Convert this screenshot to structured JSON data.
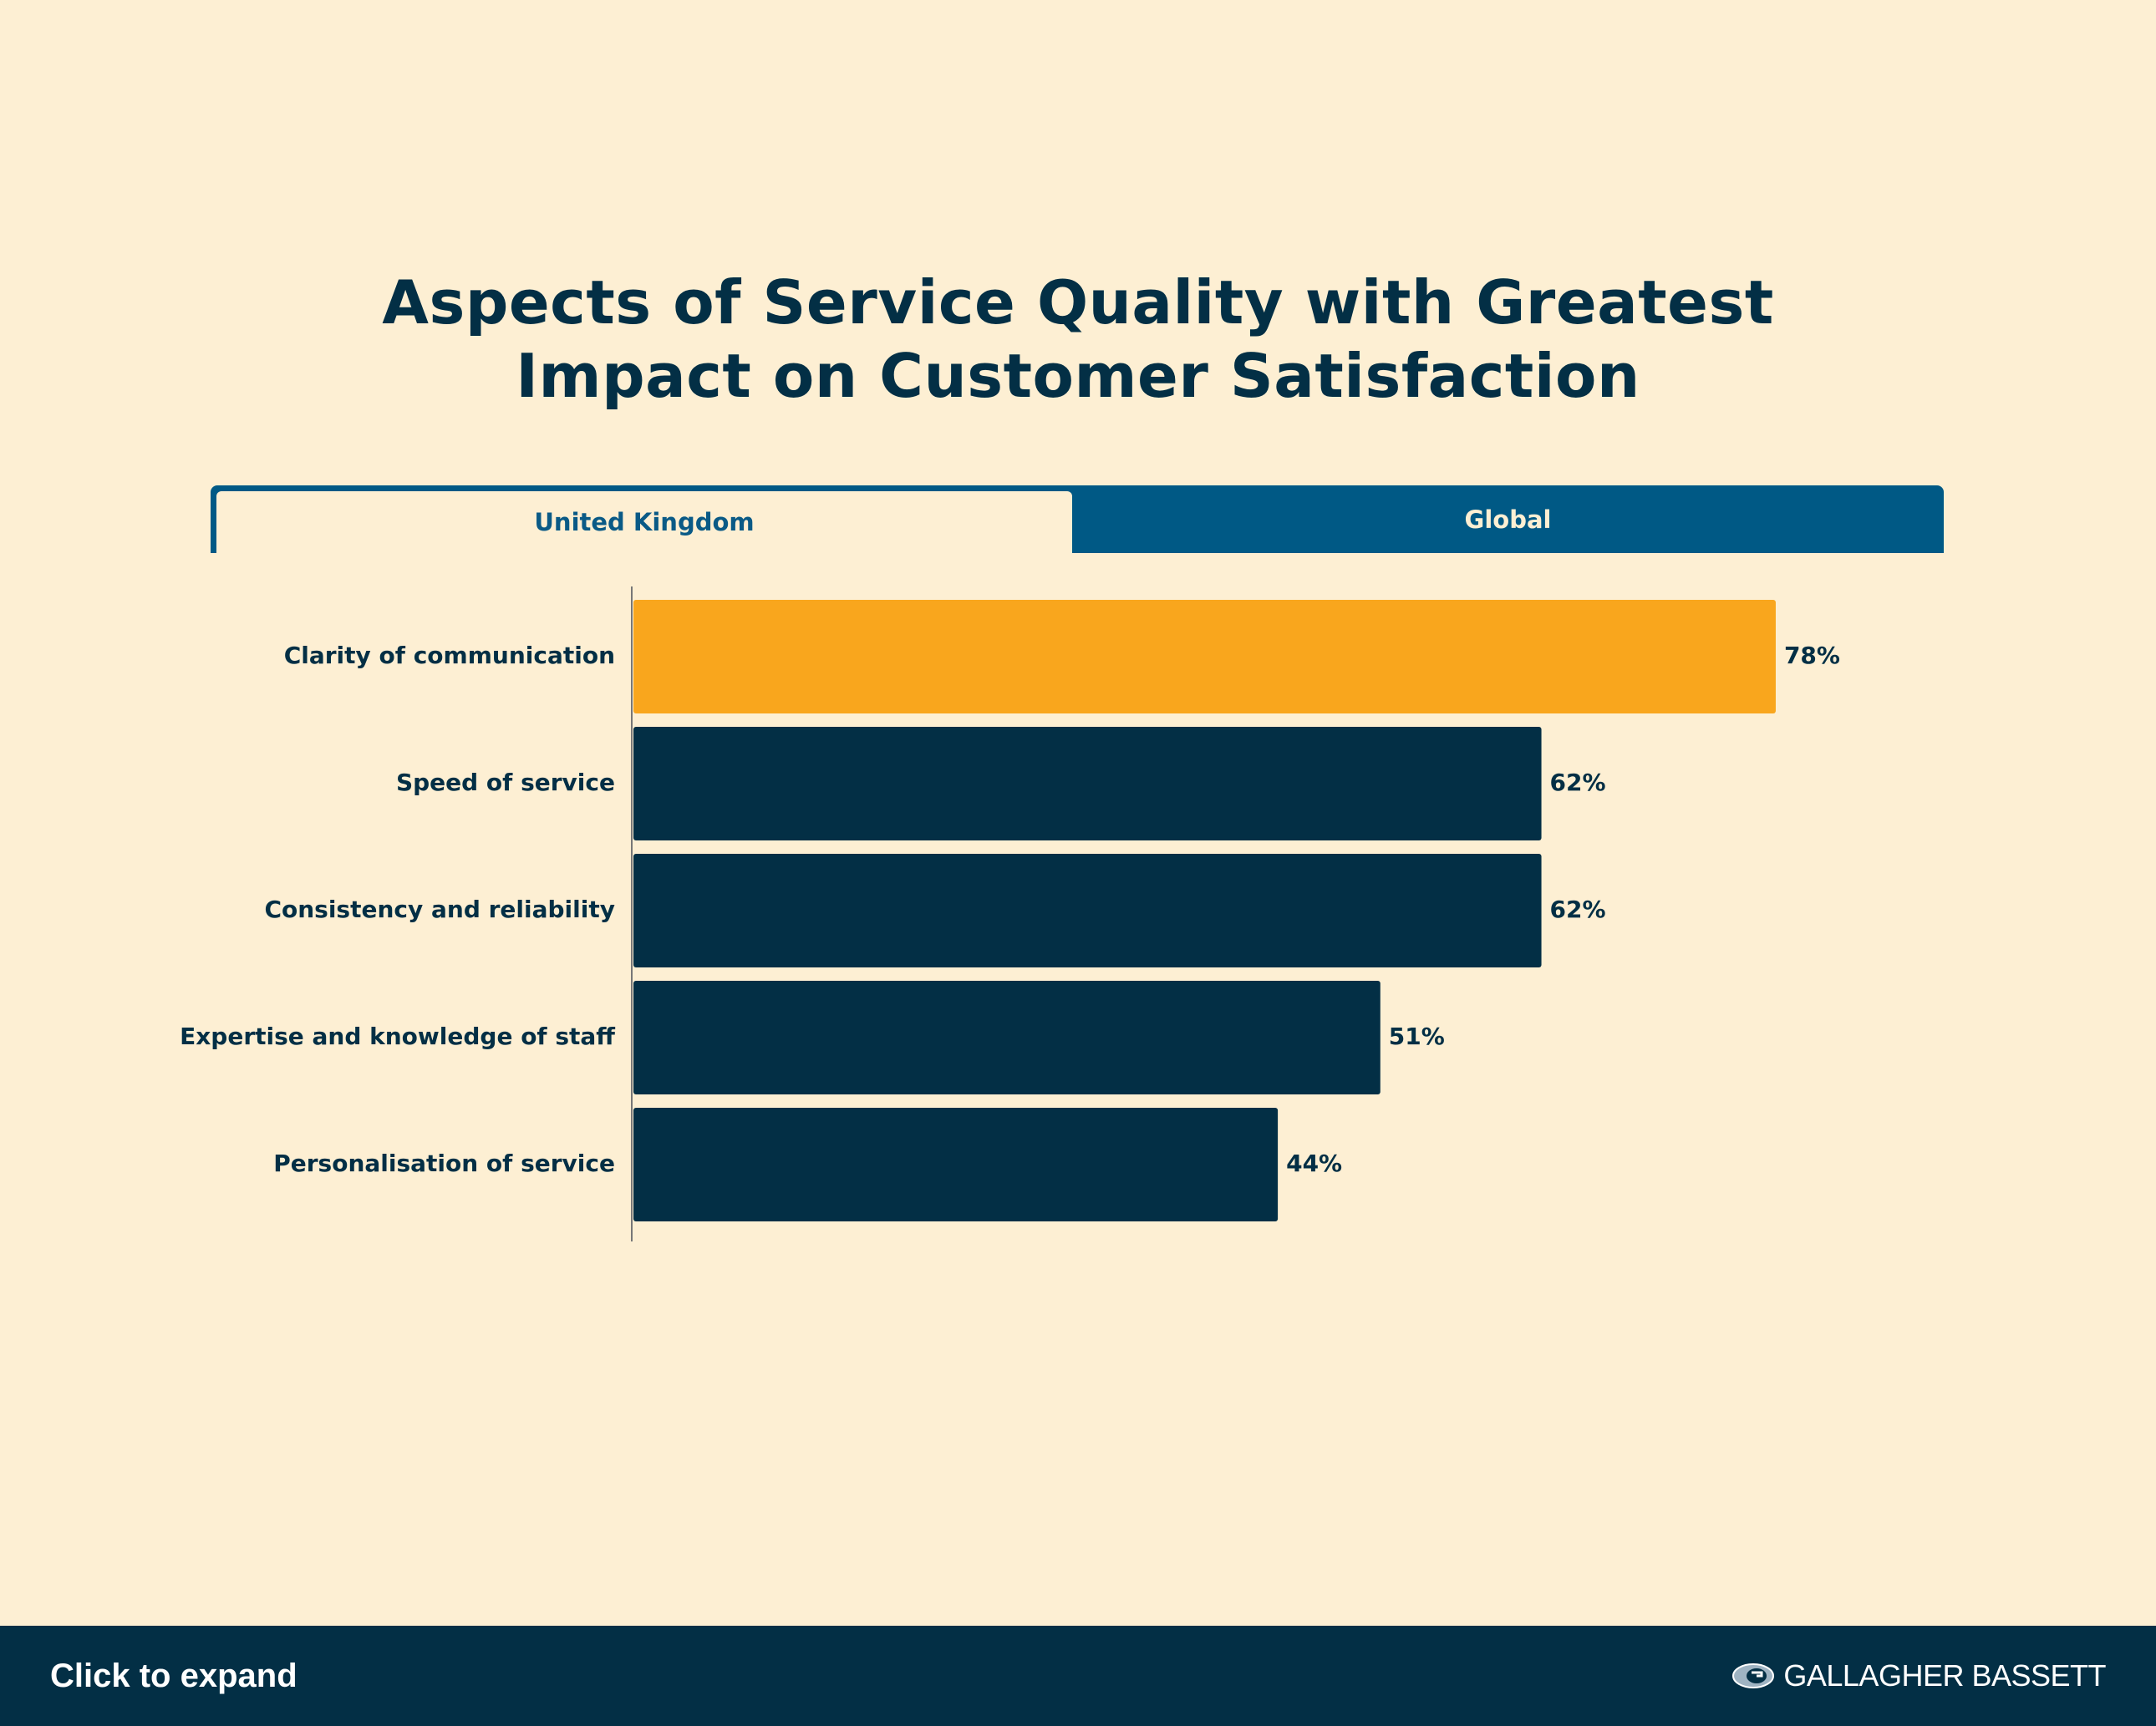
{
  "title_lines": [
    "Aspects of Service Quality with Greatest",
    "Impact on Customer Satisfaction"
  ],
  "tabs": [
    {
      "label": "United Kingdom",
      "active": true
    },
    {
      "label": "Global",
      "active": false
    }
  ],
  "chart_data": {
    "type": "bar",
    "orientation": "horizontal",
    "title": "Aspects of Service Quality with Greatest Impact on Customer Satisfaction",
    "categories": [
      "Clarity of communication",
      "Speed of service",
      "Consistency and reliability",
      "Expertise and knowledge of staff",
      "Personalisation of service"
    ],
    "values": [
      78,
      62,
      62,
      51,
      44
    ],
    "value_labels": [
      "78%",
      "62%",
      "62%",
      "51%",
      "44%"
    ],
    "unit": "%",
    "xlim": [
      0,
      100
    ],
    "grid": false,
    "highlight_index": 0,
    "colors": {
      "highlight": "#f9a61d",
      "default": "#032f45",
      "axis": "#777777",
      "text": "#032f45"
    }
  },
  "footer": {
    "expand_label": "Click to expand",
    "brand_name": "GALLAGHER BASSETT",
    "brand_icon": "gallagher-globe-logo"
  }
}
